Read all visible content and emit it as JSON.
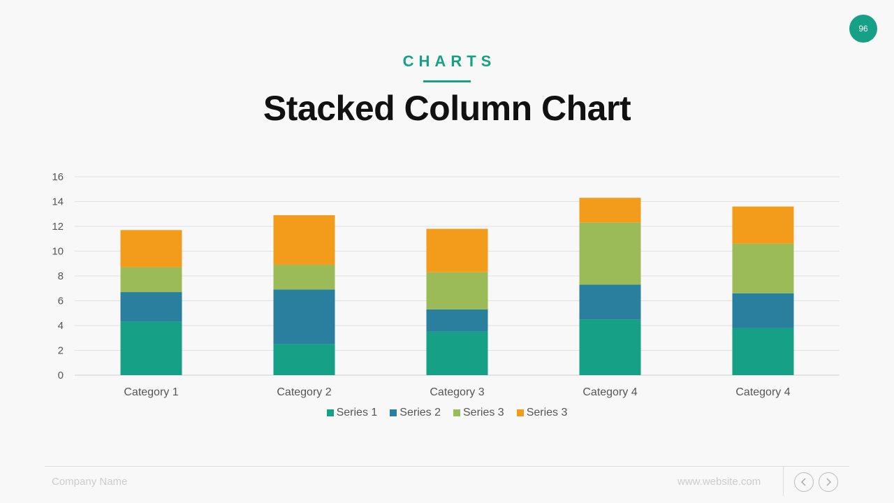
{
  "slide": {
    "page_number": "96",
    "section_label": "CHARTS",
    "title": "Stacked Column Chart"
  },
  "footer": {
    "company": "Company Name",
    "website": "www.website.com",
    "prev_icon": "chevron-left-icon",
    "next_icon": "chevron-right-icon"
  },
  "colors": {
    "accent": "#16a085",
    "series": [
      "#16a085",
      "#2a7f9e",
      "#9bbb59",
      "#f39c1b"
    ]
  },
  "chart_data": {
    "type": "bar",
    "stacked": true,
    "title": "",
    "xlabel": "",
    "ylabel": "",
    "categories": [
      "Category 1",
      "Category 2",
      "Category 3",
      "Category 4",
      "Category 4"
    ],
    "series": [
      {
        "name": "Series 1",
        "values": [
          4.3,
          2.5,
          3.5,
          4.5,
          3.8
        ]
      },
      {
        "name": "Series 2",
        "values": [
          2.4,
          4.4,
          1.8,
          2.8,
          2.8
        ]
      },
      {
        "name": "Series 3",
        "values": [
          2.0,
          2.0,
          3.0,
          5.0,
          4.0
        ]
      },
      {
        "name": "Series 3",
        "values": [
          3.0,
          4.0,
          3.5,
          2.0,
          3.0
        ]
      }
    ],
    "ylim": [
      0,
      16
    ],
    "yticks": [
      0,
      2,
      4,
      6,
      8,
      10,
      12,
      14,
      16
    ],
    "grid": true,
    "legend": "bottom"
  }
}
